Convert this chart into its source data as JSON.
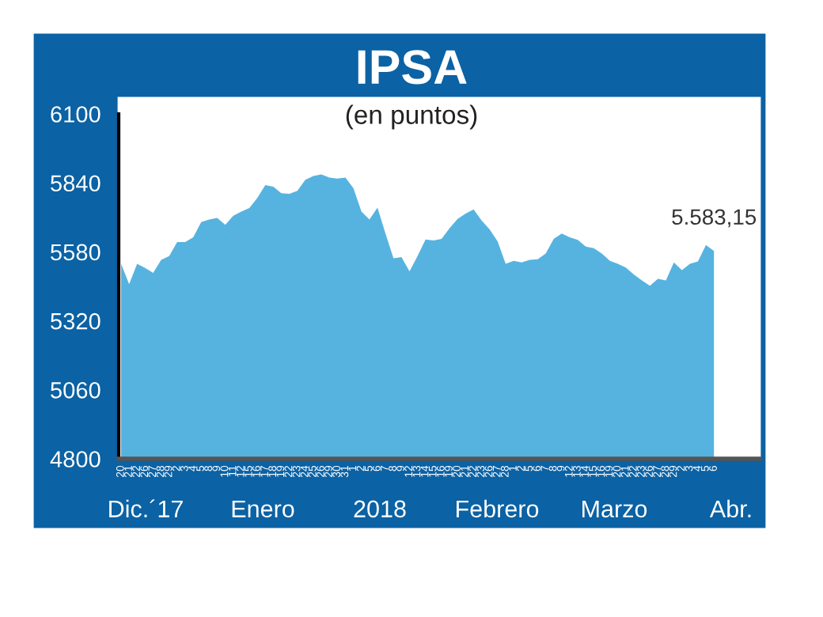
{
  "chart_data": {
    "type": "area",
    "title": "IPSA",
    "subtitle": "(en puntos)",
    "categories": [
      "20",
      "21",
      "22",
      "26",
      "27",
      "28",
      "29",
      "2",
      "3",
      "4",
      "5",
      "8",
      "9",
      "10",
      "11",
      "12",
      "15",
      "16",
      "17",
      "18",
      "19",
      "22",
      "23",
      "24",
      "25",
      "26",
      "29",
      "30",
      "31",
      "1",
      "2",
      "5",
      "6",
      "7",
      "8",
      "9",
      "12",
      "13",
      "14",
      "15",
      "16",
      "19",
      "20",
      "21",
      "22",
      "23",
      "26",
      "27",
      "28",
      "1",
      "2",
      "5",
      "6",
      "7",
      "8",
      "9",
      "12",
      "13",
      "14",
      "15",
      "16",
      "19",
      "20",
      "21",
      "22",
      "23",
      "26",
      "27",
      "28",
      "29",
      "2",
      "3",
      "4",
      "5",
      "6"
    ],
    "series": [
      {
        "color": "#56b3e0",
        "values": [
          5535,
          5458,
          5535,
          5519,
          5501,
          5550,
          5564,
          5617,
          5617,
          5635,
          5692,
          5702,
          5708,
          5682,
          5716,
          5732,
          5745,
          5783,
          5832,
          5826,
          5801,
          5799,
          5810,
          5852,
          5866,
          5872,
          5860,
          5856,
          5860,
          5820,
          5732,
          5702,
          5747,
          5649,
          5556,
          5560,
          5507,
          5564,
          5627,
          5623,
          5629,
          5669,
          5704,
          5724,
          5740,
          5698,
          5665,
          5619,
          5535,
          5546,
          5540,
          5550,
          5552,
          5574,
          5629,
          5649,
          5635,
          5625,
          5600,
          5594,
          5574,
          5546,
          5535,
          5521,
          5495,
          5472,
          5452,
          5478,
          5472,
          5540,
          5511,
          5535,
          5544,
          5606,
          5583.15
        ],
        "value_labels": [
          null,
          null,
          null,
          null,
          null,
          null,
          null,
          null,
          null,
          null,
          null,
          null,
          null,
          null,
          null,
          null,
          null,
          null,
          null,
          null,
          null,
          null,
          null,
          null,
          null,
          null,
          null,
          null,
          null,
          null,
          null,
          null,
          null,
          null,
          null,
          null,
          null,
          null,
          null,
          null,
          null,
          null,
          null,
          null,
          null,
          null,
          null,
          null,
          null,
          null,
          null,
          null,
          null,
          null,
          null,
          null,
          null,
          null,
          null,
          null,
          null,
          null,
          null,
          null,
          null,
          null,
          null,
          null,
          null,
          null,
          null,
          null,
          null,
          null,
          "5.583,15"
        ]
      }
    ],
    "ylim": [
      4800,
      6100
    ],
    "yticks": [
      4800,
      5060,
      5320,
      5580,
      5840,
      6100
    ],
    "annotations": [
      "Dic.´17",
      "Enero",
      "2018",
      "Febrero",
      "Marzo",
      "Abr."
    ],
    "grid": false,
    "legend": false
  }
}
